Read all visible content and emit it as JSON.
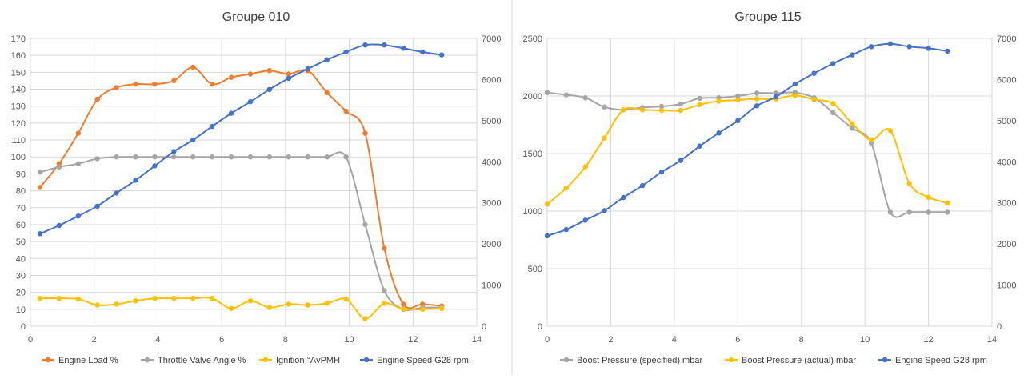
{
  "colors": {
    "orange": "#ed7d31",
    "gray": "#a5a5a5",
    "yellow": "#ffc000",
    "blue": "#4472c4",
    "grid": "#d9d9d9",
    "divider": "#d9d9d9"
  },
  "chart_data": [
    {
      "type": "scatter",
      "title": "Groupe 010",
      "x_axis": {
        "min": 0,
        "max": 14,
        "step": 2,
        "ticks": [
          "0",
          "2",
          "4",
          "6",
          "8",
          "10",
          "12",
          "14"
        ]
      },
      "y_left": {
        "min": 0,
        "max": 170,
        "step": 10,
        "ticks": [
          "0",
          "10",
          "20",
          "30",
          "40",
          "50",
          "60",
          "70",
          "80",
          "90",
          "100",
          "110",
          "120",
          "130",
          "140",
          "150",
          "160",
          "170"
        ]
      },
      "y_right": {
        "min": 0,
        "max": 7000,
        "step": 1000,
        "ticks": [
          "0",
          "1000",
          "2000",
          "3000",
          "4000",
          "5000",
          "6000",
          "7000"
        ]
      },
      "grid": true,
      "legend_position": "bottom",
      "series": [
        {
          "name": "Engine Load %",
          "color": "#ed7d31",
          "axis": "left",
          "x": [
            0.3,
            0.9,
            1.5,
            2.1,
            2.7,
            3.3,
            3.9,
            4.5,
            5.1,
            5.7,
            6.3,
            6.9,
            7.5,
            8.1,
            8.7,
            9.3,
            9.9,
            10.5,
            11.1,
            11.7,
            12.3,
            12.9
          ],
          "y": [
            82,
            96,
            114,
            134,
            141,
            143,
            143,
            145,
            153,
            143,
            147,
            149,
            151,
            149,
            151,
            138,
            127,
            114,
            46,
            13,
            13,
            12
          ]
        },
        {
          "name": "Throttle Valve Angle %",
          "color": "#a5a5a5",
          "axis": "left",
          "x": [
            0.3,
            0.9,
            1.5,
            2.1,
            2.7,
            3.3,
            3.9,
            4.5,
            5.1,
            5.7,
            6.3,
            6.9,
            7.5,
            8.1,
            8.7,
            9.3,
            9.9,
            10.5,
            11.1,
            11.7,
            12.3,
            12.9
          ],
          "y": [
            91,
            94,
            96,
            99,
            100,
            100,
            100,
            100,
            100,
            100,
            100,
            100,
            100,
            100,
            100,
            100,
            100,
            60,
            21,
            10,
            11,
            11
          ]
        },
        {
          "name": "Ignition  °AvPMH",
          "color": "#ffc000",
          "axis": "left",
          "x": [
            0.3,
            0.9,
            1.5,
            2.1,
            2.7,
            3.3,
            3.9,
            4.5,
            5.1,
            5.7,
            6.3,
            6.9,
            7.5,
            8.1,
            8.7,
            9.3,
            9.9,
            10.5,
            11.1,
            11.7,
            12.3,
            12.9
          ],
          "y": [
            16.5,
            16.5,
            16,
            12.5,
            13,
            15,
            16.5,
            16.5,
            16.5,
            16.5,
            10.5,
            15,
            11,
            13,
            12.5,
            13.5,
            16,
            4.5,
            13.5,
            10,
            10,
            10.5
          ]
        },
        {
          "name": "Engine Speed G28 rpm",
          "color": "#4472c4",
          "axis": "right",
          "x": [
            0.3,
            0.9,
            1.5,
            2.1,
            2.7,
            3.3,
            3.9,
            4.5,
            5.1,
            5.7,
            6.3,
            6.9,
            7.5,
            8.1,
            8.7,
            9.3,
            9.9,
            10.5,
            11.1,
            11.7,
            12.3,
            12.9
          ],
          "y": [
            2250,
            2450,
            2680,
            2920,
            3240,
            3550,
            3900,
            4250,
            4530,
            4860,
            5180,
            5460,
            5760,
            6030,
            6260,
            6480,
            6670,
            6840,
            6840,
            6760,
            6670,
            6600
          ]
        }
      ]
    },
    {
      "type": "scatter",
      "title": "Groupe 115",
      "x_axis": {
        "min": 0,
        "max": 14,
        "step": 2,
        "ticks": [
          "0",
          "2",
          "4",
          "6",
          "8",
          "10",
          "12",
          "14"
        ]
      },
      "y_left": {
        "min": 0,
        "max": 2500,
        "step": 500,
        "ticks": [
          "0",
          "500",
          "1000",
          "1500",
          "2000",
          "2500"
        ]
      },
      "y_right": {
        "min": 0,
        "max": 7000,
        "step": 1000,
        "ticks": [
          "0",
          "1000",
          "2000",
          "3000",
          "4000",
          "5000",
          "6000",
          "7000"
        ]
      },
      "grid": true,
      "legend_position": "bottom",
      "series": [
        {
          "name": "Boost Pressure (specified) mbar",
          "color": "#a5a5a5",
          "axis": "left",
          "x": [
            0,
            0.6,
            1.2,
            1.8,
            2.4,
            3.0,
            3.6,
            4.2,
            4.8,
            5.4,
            6.0,
            6.6,
            7.2,
            7.8,
            8.4,
            9.0,
            9.6,
            10.2,
            10.8,
            11.4,
            12.0,
            12.6
          ],
          "y": [
            2030,
            2010,
            1985,
            1905,
            1880,
            1900,
            1910,
            1930,
            1980,
            1985,
            2000,
            2025,
            2025,
            2030,
            1985,
            1855,
            1720,
            1590,
            990,
            990,
            990,
            990
          ]
        },
        {
          "name": "Boost Pressure (actual) mbar",
          "color": "#ffc000",
          "axis": "left",
          "x": [
            0,
            0.6,
            1.2,
            1.8,
            2.4,
            3.0,
            3.6,
            4.2,
            4.8,
            5.4,
            6.0,
            6.6,
            7.2,
            7.8,
            8.4,
            9.0,
            9.6,
            10.2,
            10.8,
            11.4,
            12.0,
            12.6
          ],
          "y": [
            1060,
            1200,
            1385,
            1635,
            1880,
            1880,
            1875,
            1875,
            1925,
            1955,
            1965,
            1975,
            1975,
            2005,
            1970,
            1935,
            1760,
            1620,
            1700,
            1240,
            1120,
            1070
          ]
        },
        {
          "name": "Engine Speed G28 rpm",
          "color": "#4472c4",
          "axis": "right",
          "x": [
            0,
            0.6,
            1.2,
            1.8,
            2.4,
            3.0,
            3.6,
            4.2,
            4.8,
            5.4,
            6.0,
            6.6,
            7.2,
            7.8,
            8.4,
            9.0,
            9.6,
            10.2,
            10.8,
            11.4,
            12.0,
            12.6
          ],
          "y": [
            2200,
            2350,
            2580,
            2810,
            3130,
            3420,
            3750,
            4030,
            4380,
            4700,
            5000,
            5360,
            5580,
            5890,
            6150,
            6390,
            6600,
            6800,
            6870,
            6800,
            6760,
            6690
          ]
        }
      ]
    }
  ]
}
